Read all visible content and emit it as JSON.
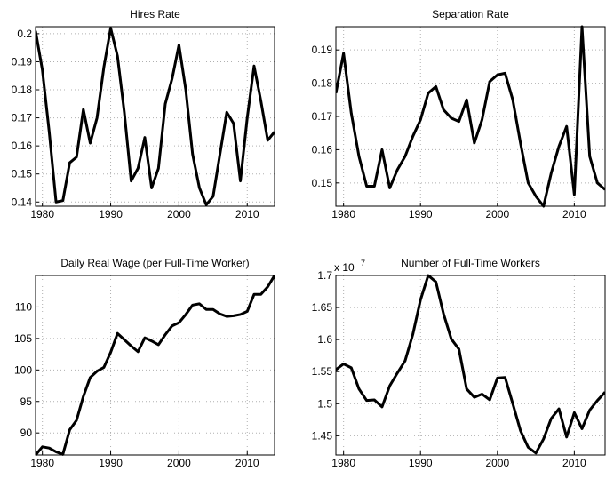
{
  "chart_data": [
    {
      "type": "line",
      "title": "Hires Rate",
      "x": [
        1979,
        1980,
        1981,
        1982,
        1983,
        1984,
        1985,
        1986,
        1987,
        1988,
        1989,
        1990,
        1991,
        1992,
        1993,
        1994,
        1995,
        1996,
        1997,
        1998,
        1999,
        2000,
        2001,
        2002,
        2003,
        2004,
        2005,
        2006,
        2007,
        2008,
        2009,
        2010,
        2011,
        2012,
        2013,
        2014
      ],
      "series": [
        {
          "color": "#000000",
          "values": [
            0.201,
            0.187,
            0.165,
            0.14,
            0.1405,
            0.154,
            0.156,
            0.173,
            0.161,
            0.17,
            0.188,
            0.202,
            0.192,
            0.172,
            0.1475,
            0.152,
            0.163,
            0.145,
            0.152,
            0.175,
            0.184,
            0.196,
            0.18,
            0.157,
            0.145,
            0.139,
            0.142,
            0.157,
            0.172,
            0.168,
            0.1475,
            0.17,
            0.1885,
            0.176,
            0.162,
            0.165
          ]
        }
      ],
      "xlim": [
        1979,
        2014
      ],
      "xticks": [
        1980,
        1990,
        2000,
        2010
      ],
      "ylim": [
        0.1385,
        0.2025
      ],
      "yticks": [
        0.14,
        0.15,
        0.16,
        0.17,
        0.18,
        0.19,
        {
          "value": 0.2,
          "label": "0.2"
        }
      ],
      "grid": true
    },
    {
      "type": "line",
      "title": "Separation Rate",
      "x": [
        1979,
        1980,
        1981,
        1982,
        1983,
        1984,
        1985,
        1986,
        1987,
        1988,
        1989,
        1990,
        1991,
        1992,
        1993,
        1994,
        1995,
        1996,
        1997,
        1998,
        1999,
        2000,
        2001,
        2002,
        2003,
        2004,
        2005,
        2006,
        2007,
        2008,
        2009,
        2010,
        2011,
        2012,
        2013,
        2014
      ],
      "series": [
        {
          "color": "#000000",
          "values": [
            0.177,
            0.189,
            0.171,
            0.158,
            0.149,
            0.149,
            0.16,
            0.1485,
            0.154,
            0.158,
            0.164,
            0.169,
            0.177,
            0.179,
            0.172,
            0.1695,
            0.1685,
            0.175,
            0.162,
            0.169,
            0.1805,
            0.1825,
            0.183,
            0.175,
            0.162,
            0.15,
            0.146,
            0.143,
            0.153,
            0.161,
            0.167,
            0.1465,
            0.197,
            0.158,
            0.15,
            0.148
          ]
        }
      ],
      "xlim": [
        1979,
        2014
      ],
      "xticks": [
        1980,
        1990,
        2000,
        2010
      ],
      "ylim": [
        0.143,
        0.197
      ],
      "yticks": [
        {
          "value": 0.15,
          "label": "0.15"
        },
        0.16,
        0.17,
        0.18,
        0.19
      ],
      "grid": true
    },
    {
      "type": "line",
      "title": "Daily Real Wage (per Full-Time Worker)",
      "x": [
        1979,
        1980,
        1981,
        1982,
        1983,
        1984,
        1985,
        1986,
        1987,
        1988,
        1989,
        1990,
        1991,
        1992,
        1993,
        1994,
        1995,
        1996,
        1997,
        1998,
        1999,
        2000,
        2001,
        2002,
        2003,
        2004,
        2005,
        2006,
        2007,
        2008,
        2009,
        2010,
        2011,
        2012,
        2013,
        2014
      ],
      "series": [
        {
          "color": "#000000",
          "values": [
            86.5,
            87.8,
            87.6,
            87.0,
            86.6,
            90.5,
            92.0,
            95.8,
            98.8,
            99.8,
            100.4,
            102.8,
            105.8,
            104.8,
            103.8,
            102.9,
            105.1,
            104.6,
            104.0,
            105.6,
            107.0,
            107.5,
            108.8,
            110.3,
            110.5,
            109.6,
            109.6,
            108.9,
            108.5,
            108.6,
            108.8,
            109.3,
            112.0,
            112.0,
            113.2,
            115.0
          ]
        }
      ],
      "xlim": [
        1979,
        2014
      ],
      "xticks": [
        1980,
        1990,
        2000,
        2010
      ],
      "ylim": [
        86.5,
        115
      ],
      "yticks": [
        90,
        95,
        100,
        105,
        110
      ],
      "grid": true
    },
    {
      "type": "line",
      "title": "Number of Full-Time Workers",
      "multiplier_base": "x 10",
      "multiplier_exponent": "7",
      "x": [
        1979,
        1980,
        1981,
        1982,
        1983,
        1984,
        1985,
        1986,
        1987,
        1988,
        1989,
        1990,
        1991,
        1992,
        1993,
        1994,
        1995,
        1996,
        1997,
        1998,
        1999,
        2000,
        2001,
        2002,
        2003,
        2004,
        2005,
        2006,
        2007,
        2008,
        2009,
        2010,
        2011,
        2012,
        2013,
        2014
      ],
      "series": [
        {
          "color": "#000000",
          "values": [
            15530000,
            15620000,
            15560000,
            15230000,
            15050000,
            15060000,
            14950000,
            15280000,
            15480000,
            15670000,
            16080000,
            16620000,
            17000000,
            16900000,
            16400000,
            16010000,
            15850000,
            15230000,
            15100000,
            15150000,
            15060000,
            15400000,
            15410000,
            15000000,
            14580000,
            14320000,
            14230000,
            14450000,
            14770000,
            14920000,
            14480000,
            14860000,
            14610000,
            14900000,
            15050000,
            15180000
          ]
        }
      ],
      "xlim": [
        1979,
        2014
      ],
      "xticks": [
        1980,
        1990,
        2000,
        2010
      ],
      "ylim": [
        14200000,
        17000000
      ],
      "yticks": [
        {
          "value": 14500000,
          "label": "1.45"
        },
        {
          "value": 15000000,
          "label": "1.5"
        },
        {
          "value": 15500000,
          "label": "1.55"
        },
        {
          "value": 16000000,
          "label": "1.6"
        },
        {
          "value": 16500000,
          "label": "1.65"
        },
        {
          "value": 17000000,
          "label": "1.7"
        }
      ],
      "grid": true
    }
  ]
}
